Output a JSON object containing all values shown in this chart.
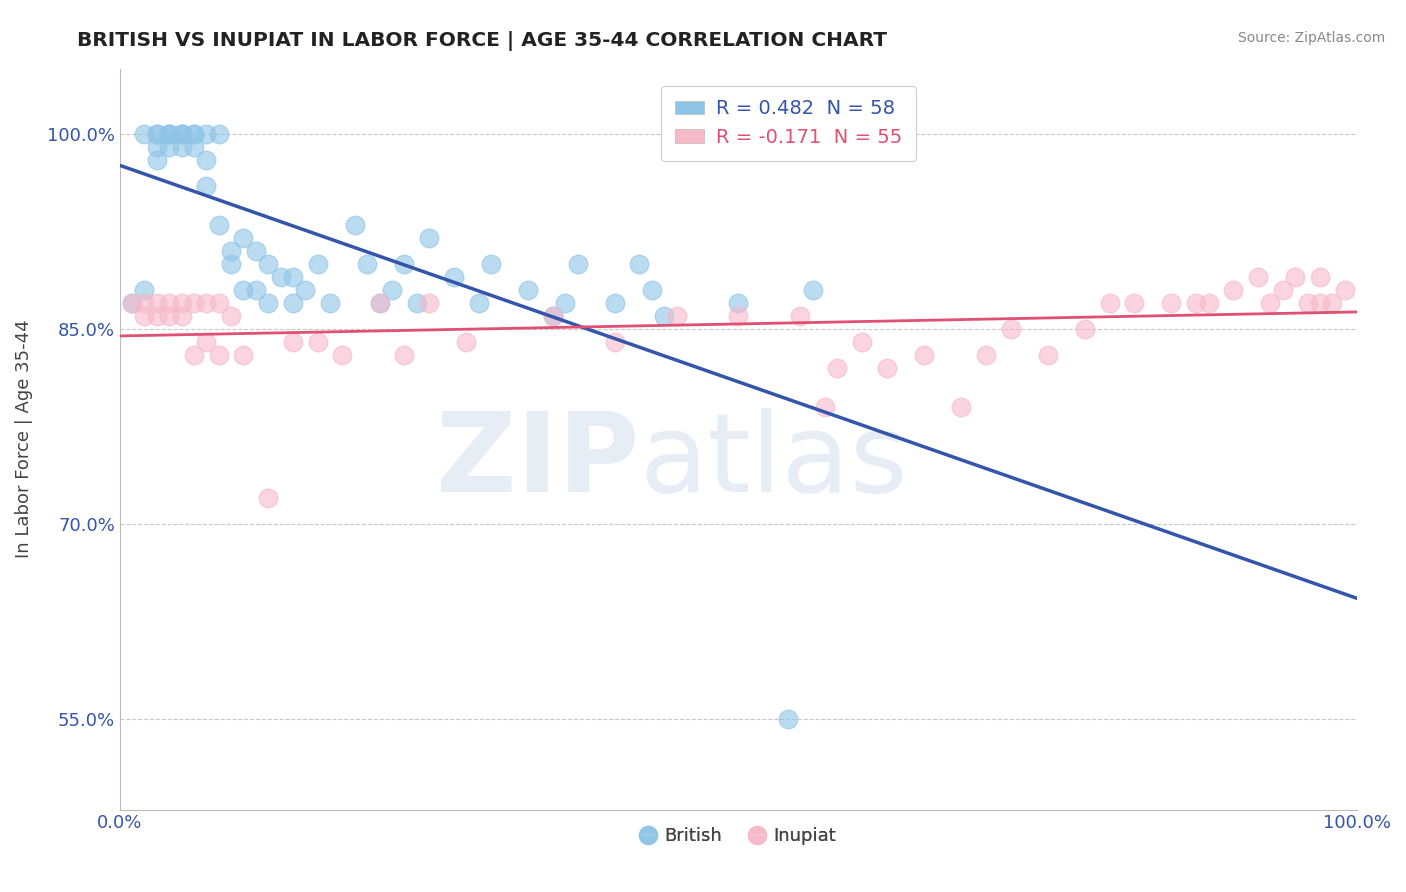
{
  "title": "BRITISH VS INUPIAT IN LABOR FORCE | AGE 35-44 CORRELATION CHART",
  "source": "Source: ZipAtlas.com",
  "ylabel": "In Labor Force | Age 35-44",
  "xlim": [
    0.0,
    1.0
  ],
  "ylim": [
    0.48,
    1.05
  ],
  "yticks": [
    0.55,
    0.7,
    0.85,
    1.0
  ],
  "ytick_labels": [
    "55.0%",
    "70.0%",
    "85.0%",
    "100.0%"
  ],
  "xtick_left_label": "0.0%",
  "xtick_right_label": "100.0%",
  "british_R": 0.482,
  "british_N": 58,
  "inupiat_R": -0.171,
  "inupiat_N": 55,
  "british_color": "#8EC4E8",
  "inupiat_color": "#F7B8C8",
  "british_line_color": "#3355AA",
  "inupiat_line_color": "#E05070",
  "british_x": [
    0.01,
    0.02,
    0.02,
    0.03,
    0.03,
    0.03,
    0.03,
    0.04,
    0.04,
    0.04,
    0.04,
    0.05,
    0.05,
    0.05,
    0.05,
    0.06,
    0.06,
    0.06,
    0.07,
    0.07,
    0.07,
    0.08,
    0.08,
    0.09,
    0.09,
    0.1,
    0.1,
    0.11,
    0.11,
    0.12,
    0.12,
    0.13,
    0.14,
    0.14,
    0.15,
    0.16,
    0.17,
    0.19,
    0.2,
    0.21,
    0.22,
    0.23,
    0.24,
    0.25,
    0.27,
    0.29,
    0.3,
    0.33,
    0.35,
    0.36,
    0.37,
    0.4,
    0.42,
    0.43,
    0.44,
    0.5,
    0.54,
    0.56
  ],
  "british_y": [
    0.87,
    0.88,
    1.0,
    0.98,
    0.99,
    1.0,
    1.0,
    0.99,
    1.0,
    1.0,
    1.0,
    0.99,
    1.0,
    1.0,
    1.0,
    0.99,
    1.0,
    1.0,
    0.96,
    0.98,
    1.0,
    0.93,
    1.0,
    0.9,
    0.91,
    0.88,
    0.92,
    0.88,
    0.91,
    0.87,
    0.9,
    0.89,
    0.87,
    0.89,
    0.88,
    0.9,
    0.87,
    0.93,
    0.9,
    0.87,
    0.88,
    0.9,
    0.87,
    0.92,
    0.89,
    0.87,
    0.9,
    0.88,
    0.86,
    0.87,
    0.9,
    0.87,
    0.9,
    0.88,
    0.86,
    0.87,
    0.55,
    0.88
  ],
  "inupiat_x": [
    0.01,
    0.02,
    0.02,
    0.03,
    0.03,
    0.04,
    0.04,
    0.05,
    0.05,
    0.06,
    0.06,
    0.07,
    0.07,
    0.08,
    0.08,
    0.09,
    0.1,
    0.12,
    0.14,
    0.16,
    0.18,
    0.21,
    0.23,
    0.25,
    0.28,
    0.35,
    0.4,
    0.45,
    0.5,
    0.55,
    0.57,
    0.58,
    0.6,
    0.62,
    0.65,
    0.68,
    0.7,
    0.72,
    0.75,
    0.78,
    0.8,
    0.82,
    0.85,
    0.87,
    0.88,
    0.9,
    0.92,
    0.93,
    0.94,
    0.95,
    0.96,
    0.97,
    0.97,
    0.98,
    0.99
  ],
  "inupiat_y": [
    0.87,
    0.86,
    0.87,
    0.86,
    0.87,
    0.86,
    0.87,
    0.86,
    0.87,
    0.83,
    0.87,
    0.84,
    0.87,
    0.83,
    0.87,
    0.86,
    0.83,
    0.72,
    0.84,
    0.84,
    0.83,
    0.87,
    0.83,
    0.87,
    0.84,
    0.86,
    0.84,
    0.86,
    0.86,
    0.86,
    0.79,
    0.82,
    0.84,
    0.82,
    0.83,
    0.79,
    0.83,
    0.85,
    0.83,
    0.85,
    0.87,
    0.87,
    0.87,
    0.87,
    0.87,
    0.88,
    0.89,
    0.87,
    0.88,
    0.89,
    0.87,
    0.89,
    0.87,
    0.87,
    0.88
  ]
}
